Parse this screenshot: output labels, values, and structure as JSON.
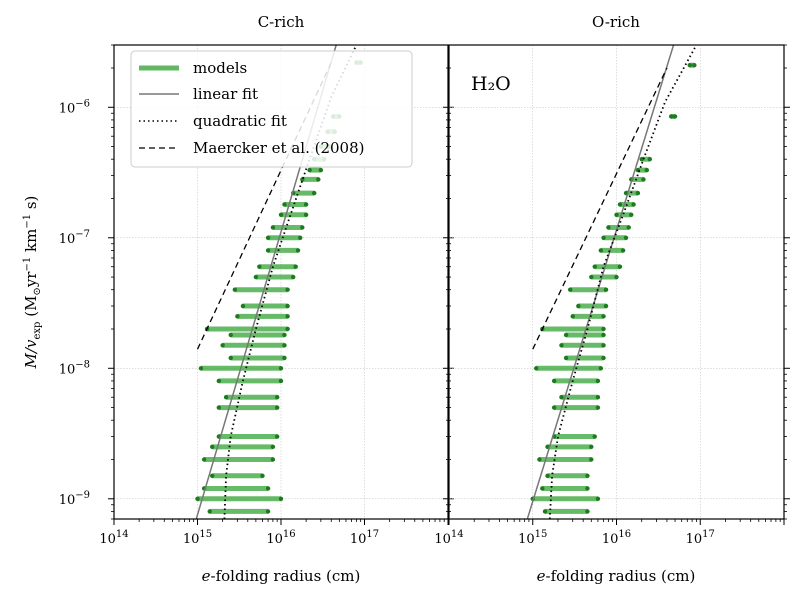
{
  "chart_data": {
    "type": "line",
    "ylabel": "Ṁ/v_exp (M⊙ yr⁻¹ km⁻¹ s)",
    "ylabel_parts": {
      "a": "M",
      "b": "/v",
      "c": "exp",
      "d": " (M",
      "e": "⊙",
      "f": "yr",
      "g": "−1",
      "h": " km",
      "i": "−1",
      "j": " s)"
    },
    "x_tick_labels": [
      {
        "base": "10",
        "exp": "14",
        "value": 100000000000000.0
      },
      {
        "base": "10",
        "exp": "15",
        "value": 1000000000000000.0
      },
      {
        "base": "10",
        "exp": "16",
        "value": 1e+16
      },
      {
        "base": "10",
        "exp": "17",
        "value": 1e+17
      }
    ],
    "y_tick_labels": [
      {
        "base": "10",
        "exp": "−9",
        "value": 1e-09
      },
      {
        "base": "10",
        "exp": "−8",
        "value": 1e-08
      },
      {
        "base": "10",
        "exp": "−7",
        "value": 1e-07
      },
      {
        "base": "10",
        "exp": "−6",
        "value": 1e-06
      }
    ],
    "xscale": "log",
    "yscale": "log",
    "ylim": [
      7e-10,
      3e-06
    ],
    "grid": true,
    "colors": {
      "models": "#2ca02c",
      "fit": "#777777",
      "quadratic": "#000000",
      "maercker": "#000000"
    },
    "legend": {
      "placement": "top-left of first panel",
      "entries": [
        {
          "label": "models",
          "style": "thick-green"
        },
        {
          "label": "linear fit",
          "style": "gray-solid"
        },
        {
          "label": "quadratic fit",
          "style": "dotted"
        },
        {
          "label": "Maercker et al. (2008)",
          "style": "dashed"
        }
      ]
    },
    "panels": [
      {
        "title": "C-rich",
        "annotation": "",
        "xlabel_parts": {
          "a": "e",
          "b": "-folding radius (cm)"
        },
        "xlim": [
          100000000000000.0,
          1e+18
        ],
        "models": [
          {
            "y": 8e-10,
            "x": [
              1400000000000000.0,
              7000000000000000.0
            ]
          },
          {
            "y": 1e-09,
            "x": [
              1000000000000000.0,
              1e+16
            ]
          },
          {
            "y": 1.2e-09,
            "x": [
              1200000000000000.0,
              7000000000000000.0
            ]
          },
          {
            "y": 1.5e-09,
            "x": [
              1500000000000000.0,
              6000000000000000.0
            ]
          },
          {
            "y": 2e-09,
            "x": [
              1200000000000000.0,
              8000000000000000.0
            ]
          },
          {
            "y": 2.5e-09,
            "x": [
              1500000000000000.0,
              8000000000000000.0
            ]
          },
          {
            "y": 3e-09,
            "x": [
              1800000000000000.0,
              9000000000000000.0
            ]
          },
          {
            "y": 4e-09,
            "x": [
              900000000000000.0,
              5500000000000000.0
            ]
          },
          {
            "y": 5e-09,
            "x": [
              1800000000000000.0,
              9000000000000000.0
            ]
          },
          {
            "y": 6e-09,
            "x": [
              2200000000000000.0,
              9000000000000000.0
            ]
          },
          {
            "y": 8e-09,
            "x": [
              1800000000000000.0,
              1e+16
            ]
          },
          {
            "y": 1e-08,
            "x": [
              1100000000000000.0,
              1e+16
            ]
          },
          {
            "y": 1.2e-08,
            "x": [
              2500000000000000.0,
              1.1e+16
            ]
          },
          {
            "y": 1.5e-08,
            "x": [
              2000000000000000.0,
              1.1e+16
            ]
          },
          {
            "y": 1.8e-08,
            "x": [
              2500000000000000.0,
              1.1e+16
            ]
          },
          {
            "y": 2e-08,
            "x": [
              1300000000000000.0,
              1.2e+16
            ]
          },
          {
            "y": 2.5e-08,
            "x": [
              3000000000000000.0,
              1.2e+16
            ]
          },
          {
            "y": 3e-08,
            "x": [
              3500000000000000.0,
              1.2e+16
            ]
          },
          {
            "y": 4e-08,
            "x": [
              2800000000000000.0,
              1.2e+16
            ]
          },
          {
            "y": 5e-08,
            "x": [
              5000000000000000.0,
              1.4e+16
            ]
          },
          {
            "y": 6e-08,
            "x": [
              5500000000000000.0,
              1.5e+16
            ]
          },
          {
            "y": 8e-08,
            "x": [
              7000000000000000.0,
              1.6e+16
            ]
          },
          {
            "y": 1e-07,
            "x": [
              7000000000000000.0,
              1.7e+16
            ]
          },
          {
            "y": 1.2e-07,
            "x": [
              8000000000000000.0,
              1.8e+16
            ]
          },
          {
            "y": 1.5e-07,
            "x": [
              1e+16,
              2e+16
            ]
          },
          {
            "y": 1.8e-07,
            "x": [
              1.1e+16,
              2e+16
            ]
          },
          {
            "y": 2.2e-07,
            "x": [
              1.4e+16,
              2.5e+16
            ]
          },
          {
            "y": 2.8e-07,
            "x": [
              1.8e+16,
              2.8e+16
            ]
          },
          {
            "y": 3.3e-07,
            "x": [
              2.2e+16,
              3e+16
            ]
          },
          {
            "y": 4e-07,
            "x": [
              2.5e+16,
              3.3e+16
            ]
          },
          {
            "y": 5e-07,
            "x": [
              3e+16,
              3.8e+16
            ]
          },
          {
            "y": 6.5e-07,
            "x": [
              3.6e+16,
              4.4e+16
            ]
          },
          {
            "y": 8.5e-07,
            "x": [
              4.2e+16,
              5e+16
            ]
          },
          {
            "y": 2.2e-06,
            "x": [
              8e+16,
              9e+16
            ]
          }
        ],
        "gradient_row": {
          "y": 4e-09,
          "x": [
            900000000000000.0,
            5500000000000000.0
          ]
        },
        "linear_fit": [
          {
            "x": 900000000000000.0,
            "y": 6e-10
          },
          {
            "x": 5.8e+16,
            "y": 5e-06
          }
        ],
        "quadratic_fit": [
          [
            2100000000000000.0,
            7e-10
          ],
          [
            2200000000000000.0,
            1.5e-09
          ],
          [
            2500000000000000.0,
            3e-09
          ],
          [
            3500000000000000.0,
            8e-09
          ],
          [
            5000000000000000.0,
            2e-08
          ],
          [
            8000000000000000.0,
            6e-08
          ],
          [
            1.3e+16,
            1.5e-07
          ],
          [
            2.2e+16,
            4e-07
          ],
          [
            4e+16,
            1.2e-06
          ],
          [
            8e+16,
            3e-06
          ]
        ],
        "maercker": [
          {
            "x": 1000000000000000.0,
            "y": 1.4e-08
          },
          {
            "x": 4e+16,
            "y": 2.2e-06
          }
        ]
      },
      {
        "title": "O-rich",
        "annotation": "H₂O",
        "xlabel_parts": {
          "a": "e",
          "b": "-folding radius (cm)"
        },
        "xlim": [
          100000000000000.0,
          1e+18
        ],
        "models": [
          {
            "y": 8e-10,
            "x": [
              1400000000000000.0,
              4500000000000000.0
            ]
          },
          {
            "y": 1e-09,
            "x": [
              1000000000000000.0,
              6000000000000000.0
            ]
          },
          {
            "y": 1.2e-09,
            "x": [
              1300000000000000.0,
              4500000000000000.0
            ]
          },
          {
            "y": 1.5e-09,
            "x": [
              1500000000000000.0,
              4500000000000000.0
            ]
          },
          {
            "y": 2e-09,
            "x": [
              1200000000000000.0,
              5000000000000000.0
            ]
          },
          {
            "y": 2.5e-09,
            "x": [
              1500000000000000.0,
              5000000000000000.0
            ]
          },
          {
            "y": 3e-09,
            "x": [
              1800000000000000.0,
              5500000000000000.0
            ]
          },
          {
            "y": 4e-09,
            "x": [
              900000000000000.0,
              4500000000000000.0
            ]
          },
          {
            "y": 5e-09,
            "x": [
              1800000000000000.0,
              6000000000000000.0
            ]
          },
          {
            "y": 6e-09,
            "x": [
              2200000000000000.0,
              6000000000000000.0
            ]
          },
          {
            "y": 8e-09,
            "x": [
              1800000000000000.0,
              6000000000000000.0
            ]
          },
          {
            "y": 1e-08,
            "x": [
              1100000000000000.0,
              6500000000000000.0
            ]
          },
          {
            "y": 1.2e-08,
            "x": [
              2500000000000000.0,
              7000000000000000.0
            ]
          },
          {
            "y": 1.5e-08,
            "x": [
              2200000000000000.0,
              7000000000000000.0
            ]
          },
          {
            "y": 1.8e-08,
            "x": [
              2500000000000000.0,
              7000000000000000.0
            ]
          },
          {
            "y": 2e-08,
            "x": [
              1300000000000000.0,
              7000000000000000.0
            ]
          },
          {
            "y": 2.5e-08,
            "x": [
              3000000000000000.0,
              7000000000000000.0
            ]
          },
          {
            "y": 3e-08,
            "x": [
              3500000000000000.0,
              7500000000000000.0
            ]
          },
          {
            "y": 4e-08,
            "x": [
              2800000000000000.0,
              7500000000000000.0
            ]
          },
          {
            "y": 5e-08,
            "x": [
              5000000000000000.0,
              1e+16
            ]
          },
          {
            "y": 6e-08,
            "x": [
              5500000000000000.0,
              1.1e+16
            ]
          },
          {
            "y": 8e-08,
            "x": [
              6500000000000000.0,
              1.2e+16
            ]
          },
          {
            "y": 1e-07,
            "x": [
              7000000000000000.0,
              1.3e+16
            ]
          },
          {
            "y": 1.2e-07,
            "x": [
              8000000000000000.0,
              1.4e+16
            ]
          },
          {
            "y": 1.5e-07,
            "x": [
              1e+16,
              1.5e+16
            ]
          },
          {
            "y": 1.8e-07,
            "x": [
              1.1e+16,
              1.6e+16
            ]
          },
          {
            "y": 2.2e-07,
            "x": [
              1.3e+16,
              1.8e+16
            ]
          },
          {
            "y": 2.8e-07,
            "x": [
              1.5e+16,
              2.1e+16
            ]
          },
          {
            "y": 3.3e-07,
            "x": [
              1.8e+16,
              2.3e+16
            ]
          },
          {
            "y": 4e-07,
            "x": [
              2e+16,
              2.5e+16
            ]
          },
          {
            "y": 8.5e-07,
            "x": [
              4.5e+16,
              5e+16
            ]
          },
          {
            "y": 2.1e-06,
            "x": [
              7.5e+16,
              8.5e+16
            ]
          }
        ],
        "gradient_row": {
          "y": 4e-09,
          "x": [
            900000000000000.0,
            4500000000000000.0
          ]
        },
        "linear_fit": [
          {
            "x": 800000000000000.0,
            "y": 6e-10
          },
          {
            "x": 4.8e+16,
            "y": 3e-06
          }
        ],
        "quadratic_fit": [
          [
            1600000000000000.0,
            7e-10
          ],
          [
            1700000000000000.0,
            1.5e-09
          ],
          [
            2000000000000000.0,
            3e-09
          ],
          [
            3000000000000000.0,
            8e-09
          ],
          [
            4500000000000000.0,
            2e-08
          ],
          [
            7000000000000000.0,
            6e-08
          ],
          [
            1.2e+16,
            1.5e-07
          ],
          [
            2.1e+16,
            4e-07
          ],
          [
            3.8e+16,
            1.1e-06
          ],
          [
            9e+16,
            3e-06
          ]
        ],
        "maercker": [
          {
            "x": 1000000000000000.0,
            "y": 1.4e-08
          },
          {
            "x": 4e+16,
            "y": 2e-06
          }
        ]
      }
    ]
  }
}
